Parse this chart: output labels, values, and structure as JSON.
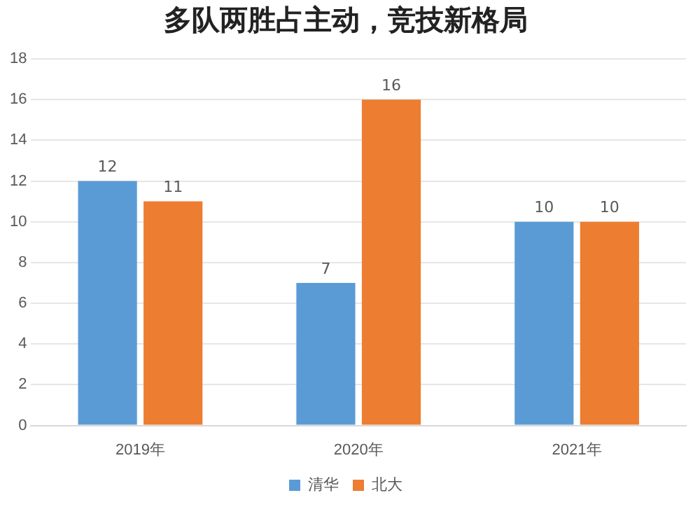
{
  "chart_data": {
    "type": "bar",
    "title": "多队两胜占主动，竞技新格局",
    "categories": [
      "2019年",
      "2020年",
      "2021年"
    ],
    "series": [
      {
        "name": "清华",
        "color": "#5b9bd5",
        "values": [
          12,
          7,
          10
        ]
      },
      {
        "name": "北大",
        "color": "#ed7d31",
        "values": [
          11,
          16,
          10
        ]
      }
    ],
    "ylim": [
      0,
      18
    ],
    "yticks": [
      0,
      2,
      4,
      6,
      8,
      10,
      12,
      14,
      16,
      18
    ],
    "grid": "y",
    "legend": "bottom",
    "data_labels": true
  }
}
